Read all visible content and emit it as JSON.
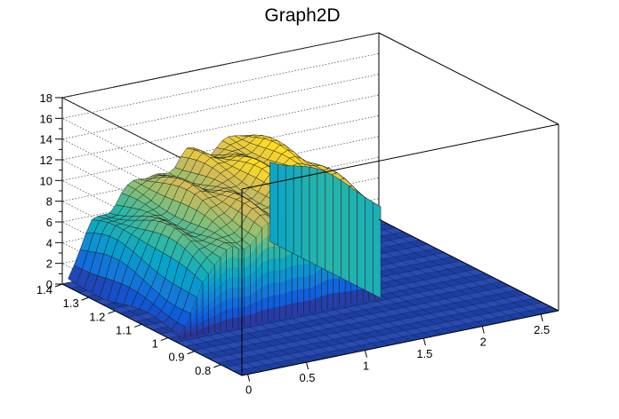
{
  "chart_data": {
    "type": "surface",
    "title": "Graph2D",
    "xlabel": "",
    "ylabel": "",
    "zlabel": "",
    "x_ticks": [
      "0",
      "0.5",
      "1",
      "1.5",
      "2",
      "2.5"
    ],
    "y_ticks": [
      "0.8",
      "0.9",
      "1",
      "1.1",
      "1.2",
      "1.3",
      "1.4"
    ],
    "z_ticks": [
      "0",
      "2",
      "4",
      "6",
      "8",
      "10",
      "12",
      "14",
      "16",
      "18"
    ],
    "x_range": [
      -0.05,
      2.65
    ],
    "y_range": [
      0.72,
      1.4
    ],
    "z_range": [
      0,
      18
    ],
    "grid": true,
    "palette": "kBird (blue-green-yellow)",
    "surface_x_extent": [
      0.0,
      1.72
    ],
    "surface_y_extent": [
      0.98,
      1.4
    ],
    "profile_x": [
      0.0,
      0.1,
      0.2,
      0.3,
      0.4,
      0.5,
      0.6,
      0.7,
      0.8,
      0.9,
      1.0,
      1.1,
      1.2,
      1.3,
      1.4,
      1.5,
      1.6,
      1.7
    ],
    "profile_z": [
      1.5,
      3.5,
      5.5,
      6.5,
      7.0,
      7.5,
      8.5,
      8.8,
      9.0,
      9.2,
      9.8,
      10.0,
      10.2,
      10.5,
      10.8,
      10.5,
      9.5,
      8.5
    ],
    "colors": {
      "palette_low": "#352a87",
      "palette_mid1": "#0f5cdd",
      "palette_mid2": "#1481d6",
      "palette_mid3": "#06a4ca",
      "palette_mid4": "#2eb7a4",
      "palette_mid5": "#87bf77",
      "palette_mid6": "#d1bb59",
      "palette_high": "#fedc23",
      "floor": "#1d3fa0",
      "axis": "#000000",
      "grid": "#555555"
    }
  }
}
